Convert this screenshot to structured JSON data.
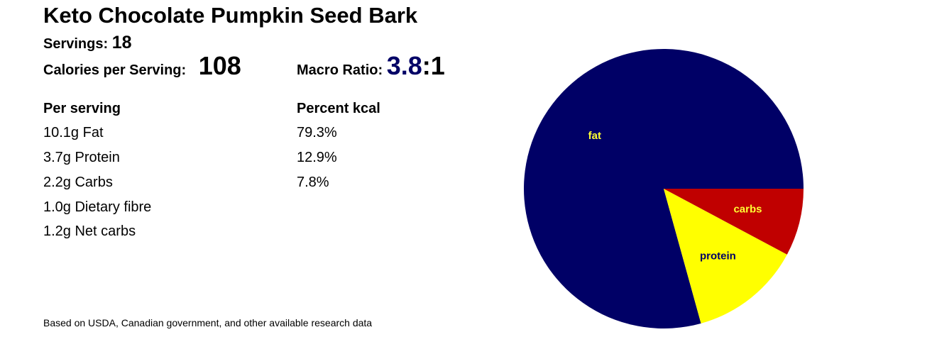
{
  "recipe": {
    "title": "Keto Chocolate Pumpkin Seed Bark",
    "servings_label": "Servings:",
    "servings_value": "18",
    "calories_label": "Calories per Serving:",
    "calories_value": "108",
    "ratio_label": "Macro Ratio:",
    "ratio_value": "3.8",
    "ratio_sep": ":",
    "ratio_rest": "1"
  },
  "table": {
    "col1_header": "Per serving",
    "col2_header": "Percent kcal",
    "rows": [
      {
        "amount": "10.1g Fat",
        "percent": "79.3%"
      },
      {
        "amount": "3.7g Protein",
        "percent": "12.9%"
      },
      {
        "amount": "2.2g Carbs",
        "percent": "7.8%"
      },
      {
        "amount": "1.0g Dietary fibre",
        "percent": ""
      },
      {
        "amount": "1.2g Net carbs",
        "percent": ""
      }
    ]
  },
  "footnote": "Based on USDA, Canadian government, and other available research data",
  "chart_data": {
    "type": "pie",
    "slices": [
      {
        "label": "fat",
        "value": 79.3,
        "color": "#000066",
        "label_color": "#ffff33"
      },
      {
        "label": "protein",
        "value": 12.9,
        "color": "#ffff00",
        "label_color": "#000066"
      },
      {
        "label": "carbs",
        "value": 7.8,
        "color": "#c00000",
        "label_color": "#ffff33"
      }
    ],
    "start": "3 o'clock",
    "direction": "counter-clockwise"
  }
}
